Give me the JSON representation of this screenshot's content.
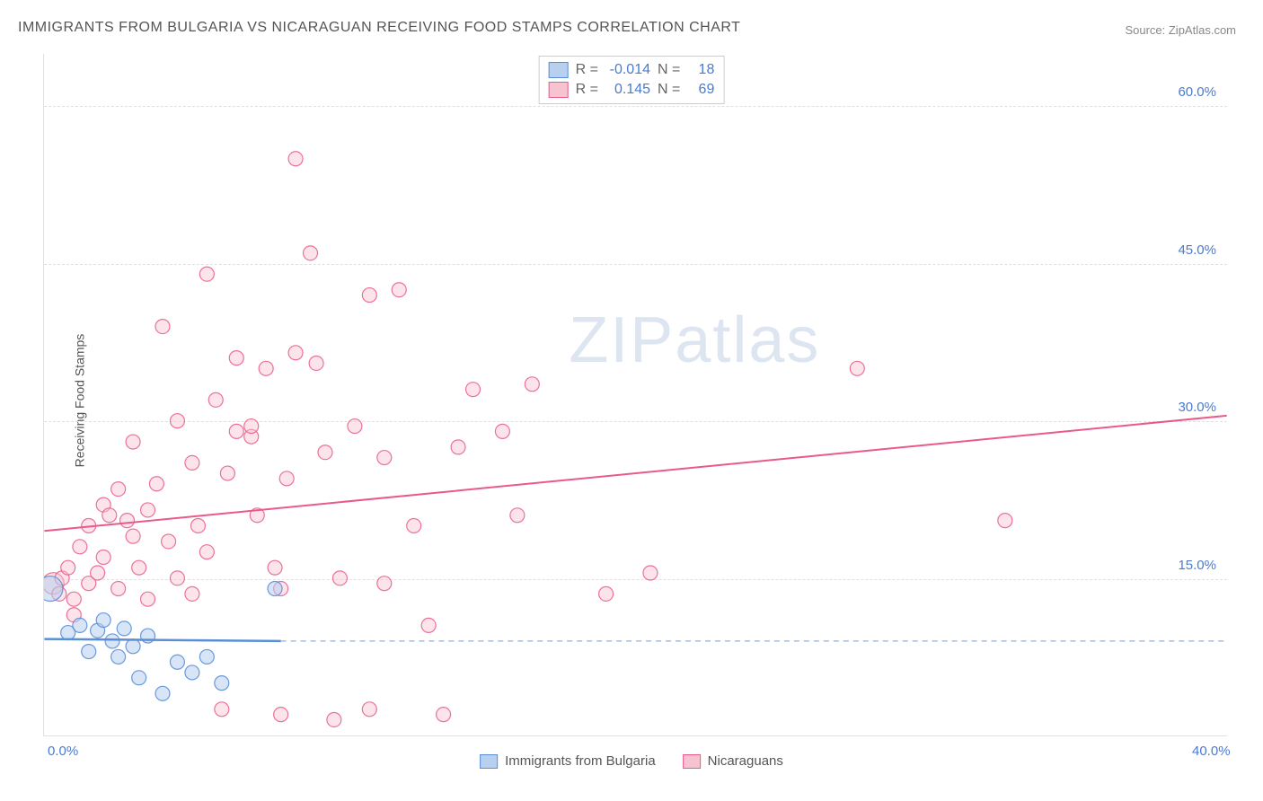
{
  "title": "IMMIGRANTS FROM BULGARIA VS NICARAGUAN RECEIVING FOOD STAMPS CORRELATION CHART",
  "source": "Source: ZipAtlas.com",
  "ylabel": "Receiving Food Stamps",
  "watermark_bold": "ZIP",
  "watermark_light": "atlas",
  "chart": {
    "type": "scatter",
    "xlim": [
      0,
      40
    ],
    "ylim": [
      0,
      65
    ],
    "xticks": [
      {
        "v": 0,
        "l": "0.0%"
      },
      {
        "v": 40,
        "l": "40.0%"
      }
    ],
    "yticks": [
      {
        "v": 15,
        "l": "15.0%"
      },
      {
        "v": 30,
        "l": "30.0%"
      },
      {
        "v": 45,
        "l": "45.0%"
      },
      {
        "v": 60,
        "l": "60.0%"
      }
    ],
    "grid_color": "#e0e0e0",
    "background_color": "#ffffff",
    "marker_radius": 8,
    "marker_radius_lg": 14,
    "line_width": 2,
    "series": [
      {
        "name": "Immigrants from Bulgaria",
        "fill": "#b7d0f0",
        "stroke": "#5a8fd8",
        "fill_opacity": 0.55,
        "stroke_opacity": 0.9,
        "R": "-0.014",
        "N": "18",
        "regression": {
          "x1": 0,
          "y1": 9.2,
          "x2": 8,
          "y2": 9.0,
          "extend_x2": 40,
          "extend_dash": true
        },
        "points": [
          {
            "x": 0.2,
            "y": 14.0,
            "r": 14
          },
          {
            "x": 0.8,
            "y": 9.8
          },
          {
            "x": 1.2,
            "y": 10.5
          },
          {
            "x": 1.5,
            "y": 8.0
          },
          {
            "x": 1.8,
            "y": 10.0
          },
          {
            "x": 2.0,
            "y": 11.0
          },
          {
            "x": 2.3,
            "y": 9.0
          },
          {
            "x": 2.5,
            "y": 7.5
          },
          {
            "x": 2.7,
            "y": 10.2
          },
          {
            "x": 3.0,
            "y": 8.5
          },
          {
            "x": 3.2,
            "y": 5.5
          },
          {
            "x": 3.5,
            "y": 9.5
          },
          {
            "x": 4.0,
            "y": 4.0
          },
          {
            "x": 4.5,
            "y": 7.0
          },
          {
            "x": 5.0,
            "y": 6.0
          },
          {
            "x": 5.5,
            "y": 7.5
          },
          {
            "x": 6.0,
            "y": 5.0
          },
          {
            "x": 7.8,
            "y": 14.0
          }
        ]
      },
      {
        "name": "Nicaraguans",
        "fill": "#f8c3d0",
        "stroke": "#e85a8a",
        "fill_opacity": 0.45,
        "stroke_opacity": 0.85,
        "R": "0.145",
        "N": "69",
        "regression": {
          "x1": 0,
          "y1": 19.5,
          "x2": 40,
          "y2": 30.5,
          "extend_dash": false
        },
        "points": [
          {
            "x": 0.3,
            "y": 14.5,
            "r": 12
          },
          {
            "x": 0.5,
            "y": 13.5
          },
          {
            "x": 0.6,
            "y": 15.0
          },
          {
            "x": 0.8,
            "y": 16.0
          },
          {
            "x": 1.0,
            "y": 13.0
          },
          {
            "x": 1.2,
            "y": 18.0
          },
          {
            "x": 1.5,
            "y": 14.5
          },
          {
            "x": 1.5,
            "y": 20.0
          },
          {
            "x": 1.8,
            "y": 15.5
          },
          {
            "x": 2.0,
            "y": 22.0
          },
          {
            "x": 2.0,
            "y": 17.0
          },
          {
            "x": 2.2,
            "y": 21.0
          },
          {
            "x": 2.5,
            "y": 23.5
          },
          {
            "x": 2.5,
            "y": 14.0
          },
          {
            "x": 2.8,
            "y": 20.5
          },
          {
            "x": 3.0,
            "y": 19.0
          },
          {
            "x": 3.0,
            "y": 28.0
          },
          {
            "x": 3.2,
            "y": 16.0
          },
          {
            "x": 3.5,
            "y": 21.5
          },
          {
            "x": 3.5,
            "y": 13.0
          },
          {
            "x": 3.8,
            "y": 24.0
          },
          {
            "x": 4.0,
            "y": 39.0
          },
          {
            "x": 4.2,
            "y": 18.5
          },
          {
            "x": 4.5,
            "y": 30.0
          },
          {
            "x": 4.5,
            "y": 15.0
          },
          {
            "x": 5.0,
            "y": 26.0
          },
          {
            "x": 5.0,
            "y": 13.5
          },
          {
            "x": 5.2,
            "y": 20.0
          },
          {
            "x": 5.5,
            "y": 44.0
          },
          {
            "x": 5.5,
            "y": 17.5
          },
          {
            "x": 5.8,
            "y": 32.0
          },
          {
            "x": 6.0,
            "y": 2.5
          },
          {
            "x": 6.2,
            "y": 25.0
          },
          {
            "x": 6.5,
            "y": 29.0
          },
          {
            "x": 6.5,
            "y": 36.0
          },
          {
            "x": 7.0,
            "y": 28.5
          },
          {
            "x": 7.0,
            "y": 29.5
          },
          {
            "x": 7.2,
            "y": 21.0
          },
          {
            "x": 7.5,
            "y": 35.0
          },
          {
            "x": 7.8,
            "y": 16.0
          },
          {
            "x": 8.0,
            "y": 14.0
          },
          {
            "x": 8.0,
            "y": 2.0
          },
          {
            "x": 8.2,
            "y": 24.5
          },
          {
            "x": 8.5,
            "y": 55.0
          },
          {
            "x": 8.5,
            "y": 36.5
          },
          {
            "x": 9.0,
            "y": 46.0
          },
          {
            "x": 9.2,
            "y": 35.5
          },
          {
            "x": 9.5,
            "y": 27.0
          },
          {
            "x": 9.8,
            "y": 1.5
          },
          {
            "x": 10.0,
            "y": 15.0
          },
          {
            "x": 10.5,
            "y": 29.5
          },
          {
            "x": 11.0,
            "y": 42.0
          },
          {
            "x": 11.0,
            "y": 2.5
          },
          {
            "x": 11.5,
            "y": 14.5
          },
          {
            "x": 11.5,
            "y": 26.5
          },
          {
            "x": 12.0,
            "y": 42.5
          },
          {
            "x": 12.5,
            "y": 20.0
          },
          {
            "x": 13.0,
            "y": 10.5
          },
          {
            "x": 13.5,
            "y": 2.0
          },
          {
            "x": 14.0,
            "y": 27.5
          },
          {
            "x": 14.5,
            "y": 33.0
          },
          {
            "x": 15.5,
            "y": 29.0
          },
          {
            "x": 16.0,
            "y": 21.0
          },
          {
            "x": 16.5,
            "y": 33.5
          },
          {
            "x": 19.0,
            "y": 13.5
          },
          {
            "x": 20.5,
            "y": 15.5
          },
          {
            "x": 27.5,
            "y": 35.0
          },
          {
            "x": 32.5,
            "y": 20.5
          },
          {
            "x": 1.0,
            "y": 11.5
          }
        ]
      }
    ]
  },
  "legend_top_label_R": "R =",
  "legend_top_label_N": "N ="
}
